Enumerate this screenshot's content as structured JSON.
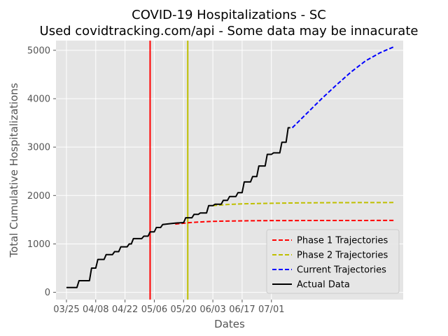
{
  "chart_data": {
    "type": "line",
    "title": "COVID-19 Hospitalizations - SC",
    "subtitle": "Used covidtracking.com/api - Some data may be innacurate",
    "xlabel": "Dates",
    "ylabel": "Total Cumulative Hospitalizations",
    "x_tick_labels": [
      "03/25",
      "04/08",
      "04/22",
      "05/06",
      "05/20",
      "06/03",
      "06/17",
      "07/01"
    ],
    "x_ticks": [
      "2020-03-25",
      "2020-04-08",
      "2020-04-22",
      "2020-05-06",
      "2020-05-20",
      "2020-06-03",
      "2020-06-17",
      "2020-07-01"
    ],
    "xlim": [
      "2020-03-20",
      "2020-09-02"
    ],
    "y_ticks": [
      0,
      1000,
      2000,
      3000,
      4000,
      5000
    ],
    "ylim": [
      -150,
      5200
    ],
    "grid": true,
    "legend_position": "lower-right",
    "vertical_lines": [
      {
        "x": "2020-05-04",
        "color": "#ff0000"
      },
      {
        "x": "2020-05-22",
        "color": "#bfbf00"
      }
    ],
    "series": [
      {
        "name": "Phase 1 Trajectories",
        "style": "dashed",
        "color": "#ff0000",
        "points": [
          [
            "2020-05-16",
            1410
          ],
          [
            "2020-05-23",
            1440
          ],
          [
            "2020-05-30",
            1460
          ],
          [
            "2020-06-06",
            1470
          ],
          [
            "2020-06-20",
            1478
          ],
          [
            "2020-07-04",
            1482
          ],
          [
            "2020-08-01",
            1484
          ],
          [
            "2020-08-29",
            1485
          ]
        ]
      },
      {
        "name": "Phase 2 Trajectories",
        "style": "dashed",
        "color": "#bfbf00",
        "points": [
          [
            "2020-06-03",
            1790
          ],
          [
            "2020-06-10",
            1815
          ],
          [
            "2020-06-17",
            1828
          ],
          [
            "2020-07-01",
            1840
          ],
          [
            "2020-07-15",
            1848
          ],
          [
            "2020-08-01",
            1852
          ],
          [
            "2020-08-29",
            1855
          ]
        ]
      },
      {
        "name": "Current Trajectories",
        "style": "dashed",
        "color": "#0000ff",
        "points": [
          [
            "2020-07-11",
            3400
          ],
          [
            "2020-07-18",
            3700
          ],
          [
            "2020-07-25",
            4000
          ],
          [
            "2020-08-01",
            4280
          ],
          [
            "2020-08-08",
            4550
          ],
          [
            "2020-08-15",
            4780
          ],
          [
            "2020-08-22",
            4950
          ],
          [
            "2020-08-29",
            5080
          ]
        ]
      },
      {
        "name": "Actual Data",
        "style": "solid",
        "color": "#000000",
        "points": [
          [
            "2020-03-25",
            100
          ],
          [
            "2020-03-30",
            100
          ],
          [
            "2020-03-31",
            240
          ],
          [
            "2020-04-05",
            240
          ],
          [
            "2020-04-06",
            500
          ],
          [
            "2020-04-08",
            500
          ],
          [
            "2020-04-09",
            680
          ],
          [
            "2020-04-12",
            680
          ],
          [
            "2020-04-13",
            780
          ],
          [
            "2020-04-16",
            780
          ],
          [
            "2020-04-17",
            840
          ],
          [
            "2020-04-19",
            840
          ],
          [
            "2020-04-20",
            940
          ],
          [
            "2020-04-23",
            940
          ],
          [
            "2020-04-24",
            1000
          ],
          [
            "2020-04-25",
            1000
          ],
          [
            "2020-04-26",
            1110
          ],
          [
            "2020-04-30",
            1110
          ],
          [
            "2020-05-01",
            1160
          ],
          [
            "2020-05-03",
            1160
          ],
          [
            "2020-05-04",
            1250
          ],
          [
            "2020-05-06",
            1250
          ],
          [
            "2020-05-07",
            1340
          ],
          [
            "2020-05-09",
            1340
          ],
          [
            "2020-05-10",
            1400
          ],
          [
            "2020-05-14",
            1420
          ],
          [
            "2020-05-16",
            1430
          ],
          [
            "2020-05-20",
            1440
          ],
          [
            "2020-05-21",
            1540
          ],
          [
            "2020-05-24",
            1540
          ],
          [
            "2020-05-25",
            1610
          ],
          [
            "2020-05-27",
            1610
          ],
          [
            "2020-05-28",
            1640
          ],
          [
            "2020-05-31",
            1640
          ],
          [
            "2020-06-01",
            1790
          ],
          [
            "2020-06-03",
            1790
          ],
          [
            "2020-06-04",
            1820
          ],
          [
            "2020-06-07",
            1820
          ],
          [
            "2020-06-08",
            1900
          ],
          [
            "2020-06-10",
            1900
          ],
          [
            "2020-06-11",
            1980
          ],
          [
            "2020-06-14",
            1980
          ],
          [
            "2020-06-15",
            2060
          ],
          [
            "2020-06-17",
            2060
          ],
          [
            "2020-06-18",
            2280
          ],
          [
            "2020-06-21",
            2280
          ],
          [
            "2020-06-22",
            2390
          ],
          [
            "2020-06-24",
            2390
          ],
          [
            "2020-06-25",
            2610
          ],
          [
            "2020-06-28",
            2610
          ],
          [
            "2020-06-29",
            2850
          ],
          [
            "2020-07-01",
            2850
          ],
          [
            "2020-07-02",
            2880
          ],
          [
            "2020-07-05",
            2880
          ],
          [
            "2020-07-06",
            3100
          ],
          [
            "2020-07-08",
            3100
          ],
          [
            "2020-07-09",
            3400
          ],
          [
            "2020-07-10",
            3400
          ]
        ]
      }
    ]
  }
}
